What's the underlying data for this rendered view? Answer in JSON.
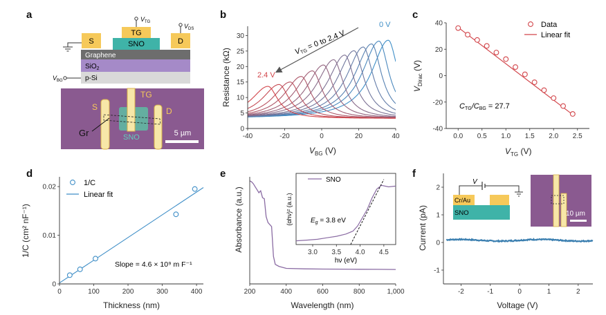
{
  "panel_labels": {
    "a": "a",
    "b": "b",
    "c": "c",
    "d": "d",
    "e": "e",
    "f": "f"
  },
  "panel_a": {
    "source": "S",
    "drain": "D",
    "top_gate": "TG",
    "channel": "SNO",
    "graphene": "Graphene",
    "oxide": "SiO",
    "oxide_sub": "2",
    "substrate": "p-Si",
    "v_tg": "V",
    "v_tg_sub": "TG",
    "v_ds": "V",
    "v_ds_sub": "DS",
    "v_bg": "V",
    "v_bg_sub": "BG",
    "photo_s": "S",
    "photo_d": "D",
    "photo_tg": "TG",
    "photo_sno": "SNO",
    "photo_gr": "Gr",
    "scale_bar": "5 µm"
  },
  "chart_data": [
    {
      "id": "b",
      "type": "line",
      "title": "",
      "xlabel": "V",
      "xlabel_sub": "BG",
      "xlabel_unit": " (V)",
      "ylabel": "Resistance (kΩ)",
      "xlim": [
        -40,
        40
      ],
      "ylim": [
        0,
        33
      ],
      "xticks": [
        -40,
        -20,
        0,
        20,
        40
      ],
      "yticks": [
        0,
        5,
        10,
        15,
        20,
        25,
        30
      ],
      "series_params": {
        "v_tg": [
          0,
          0.2,
          0.4,
          0.6,
          0.8,
          1.0,
          1.2,
          1.4,
          1.6,
          1.8,
          2.0,
          2.2,
          2.4
        ],
        "dirac_voltage": [
          36,
          31,
          27,
          22.5,
          17.5,
          12.5,
          6.5,
          1,
          -5,
          -11,
          -17,
          -23,
          -29
        ],
        "peak_resistance": [
          28.5,
          28.2,
          27.3,
          26.3,
          25.1,
          23.7,
          22.2,
          20.5,
          18.6,
          16.8,
          15.0,
          14.2,
          13.6
        ],
        "baseline_resistance": 3.2
      },
      "annotations": {
        "top": "0 V",
        "bottom": "2.4 V",
        "arrow_label": "V",
        "arrow_label_sub": "TG",
        "arrow_label_rest": " = 0 to 2.4 V"
      }
    },
    {
      "id": "c",
      "type": "scatter",
      "xlabel": "V",
      "xlabel_sub": "TG",
      "xlabel_unit": " (V)",
      "ylabel": "V",
      "ylabel_sub": "Dirac",
      "ylabel_unit": " (V)",
      "xlim": [
        -0.25,
        2.75
      ],
      "ylim": [
        -40,
        40
      ],
      "xticks": [
        0,
        0.5,
        1.0,
        1.5,
        2.0,
        2.5
      ],
      "yticks": [
        -40,
        -20,
        0,
        20,
        40
      ],
      "x": [
        0,
        0.2,
        0.4,
        0.6,
        0.8,
        1.0,
        1.2,
        1.4,
        1.6,
        1.8,
        2.0,
        2.2,
        2.4
      ],
      "y": [
        36,
        31,
        27,
        22.5,
        17.5,
        12.5,
        6.5,
        1,
        -5,
        -11,
        -17,
        -23,
        -29
      ],
      "fit": {
        "x": [
          0,
          2.4
        ],
        "y": [
          36.5,
          -29.5
        ]
      },
      "legend": [
        "Data",
        "Linear fit"
      ],
      "annotation": "C",
      "annotation_sub1": "TG",
      "annotation_mid": "/C",
      "annotation_sub2": "BG",
      "annotation_tail": " = 27.7"
    },
    {
      "id": "d",
      "type": "scatter",
      "xlabel": "Thickness (nm)",
      "ylabel": "1/C (cm² nF⁻¹)",
      "xlim": [
        0,
        420
      ],
      "ylim": [
        0,
        0.022
      ],
      "xticks": [
        0,
        100,
        200,
        300,
        400
      ],
      "yticks": [
        0,
        0.01,
        0.02
      ],
      "x": [
        30,
        60,
        105,
        340,
        395
      ],
      "y": [
        0.0018,
        0.003,
        0.0052,
        0.0143,
        0.0195
      ],
      "fit": {
        "x": [
          0,
          420
        ],
        "y": [
          0.0002,
          0.0198
        ]
      },
      "legend": [
        "1/C",
        "Linear fit"
      ],
      "annotation": "Slope = 4.6 × 10⁹ m F⁻¹"
    },
    {
      "id": "e",
      "type": "line",
      "xlabel": "Wavelength (nm)",
      "ylabel": "Absorbance (a.u.)",
      "xlim": [
        200,
        1000
      ],
      "xticks": [
        200,
        400,
        600,
        800,
        1000
      ],
      "x": [
        200,
        210,
        220,
        230,
        240,
        250,
        260,
        270,
        280,
        290,
        300,
        310,
        320,
        330,
        340,
        360,
        400,
        500,
        600,
        700,
        800,
        900,
        1000
      ],
      "y": [
        0.96,
        0.95,
        0.93,
        0.9,
        0.87,
        0.84,
        0.86,
        0.79,
        0.78,
        0.6,
        0.54,
        0.52,
        0.5,
        0.2,
        0.12,
        0.1,
        0.08,
        0.075,
        0.073,
        0.072,
        0.071,
        0.07,
        0.069
      ],
      "inset": {
        "legend": "SNO",
        "xlabel": "hν (eV)",
        "ylabel": "(αhν)² (a.u.)",
        "xlim": [
          2.65,
          4.75
        ],
        "xticks": [
          3.0,
          3.5,
          4.0,
          4.5
        ],
        "x": [
          2.65,
          2.9,
          3.1,
          3.3,
          3.5,
          3.7,
          3.85,
          3.95,
          4.05,
          4.15,
          4.25,
          4.35,
          4.45,
          4.6,
          4.75
        ],
        "y": [
          0.05,
          0.06,
          0.07,
          0.09,
          0.11,
          0.14,
          0.18,
          0.25,
          0.36,
          0.47,
          0.62,
          0.74,
          0.79,
          0.77,
          0.78
        ],
        "tangent_x": [
          3.8,
          4.5
        ],
        "annotation": "E",
        "annotation_sub": "g",
        "annotation_tail": " = 3.8 eV"
      }
    },
    {
      "id": "f",
      "type": "line",
      "xlabel": "Voltage (V)",
      "ylabel": "Current (pA)",
      "xlim": [
        -2.6,
        2.5
      ],
      "ylim": [
        -1.5,
        2.5
      ],
      "xticks": [
        -2,
        -1,
        0,
        1,
        2
      ],
      "yticks": [
        -1,
        0,
        1,
        2
      ],
      "x_range": [
        -2.5,
        2.5
      ],
      "current_mean": 0.08,
      "current_noise": 0.04,
      "inset_labels": {
        "v": "V",
        "contact": "Cr/Au",
        "channel": "SNO",
        "scale_bar": "10 µm"
      }
    }
  ],
  "colors": {
    "yellow": "#f6c95a",
    "teal": "#3fb3a8",
    "graphene": "#6d6d6d",
    "oxide": "#a58ac8",
    "substrate": "#d9d9d9",
    "micro": "#8a5a90",
    "red": "#d2454a",
    "blue": "#3e8ec7",
    "purple": "#8a6ba3",
    "steel": "#3b7fb0"
  }
}
